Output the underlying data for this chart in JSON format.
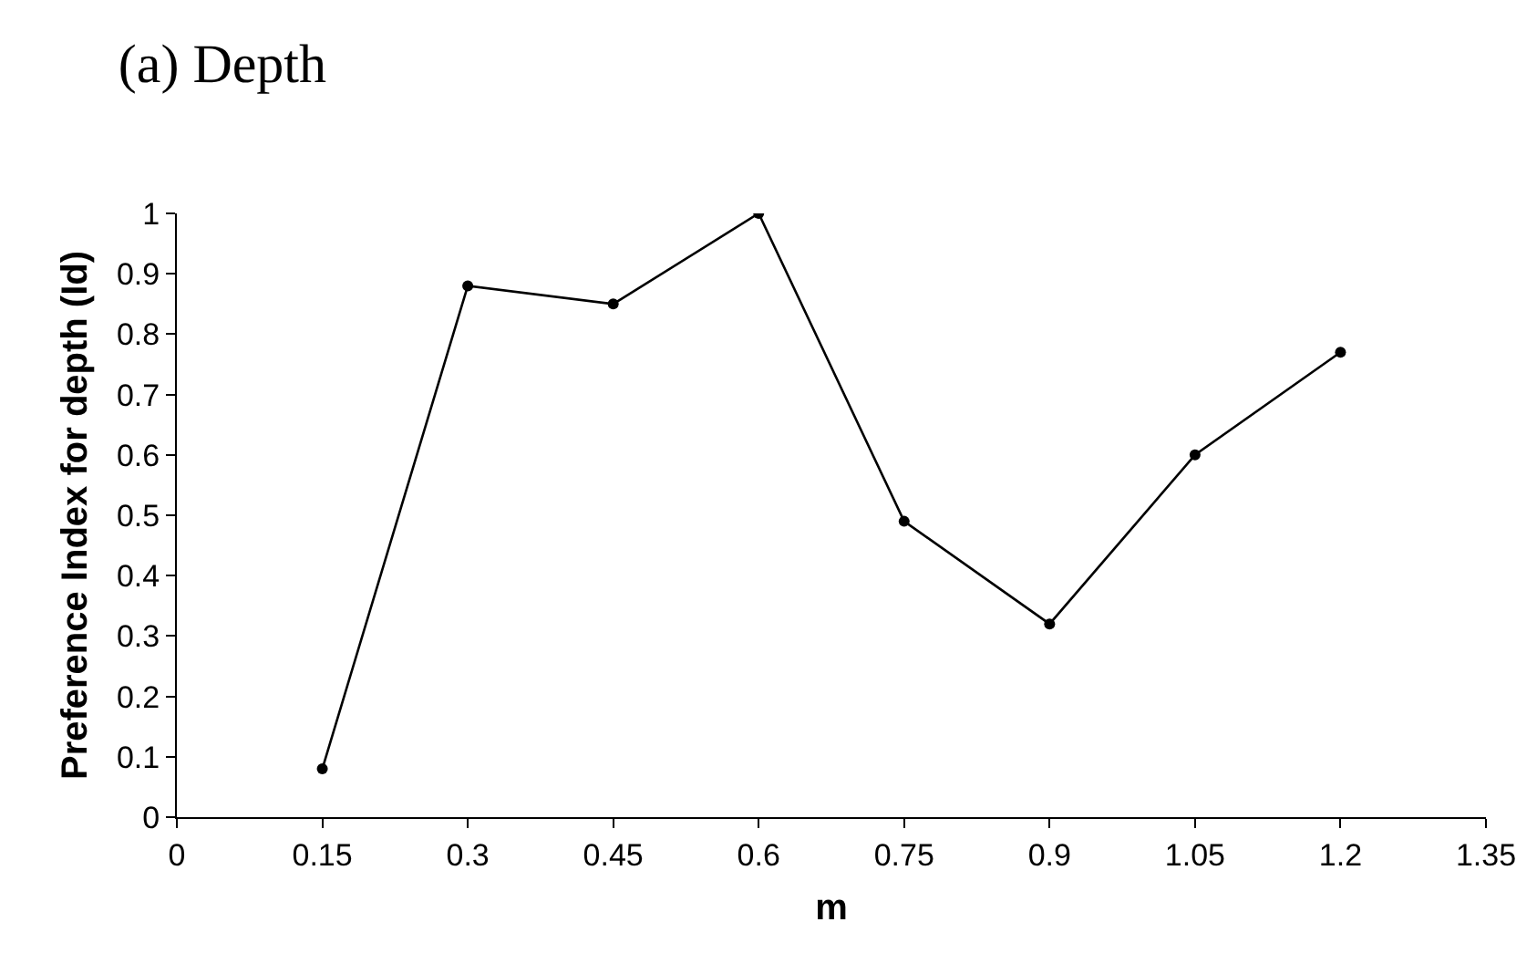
{
  "chart_data": {
    "type": "line",
    "title": "(a) Depth",
    "xlabel": "m",
    "ylabel": "Preference Index for depth (Id)",
    "x": [
      0.15,
      0.3,
      0.45,
      0.6,
      0.75,
      0.9,
      1.05,
      1.2
    ],
    "series": [
      {
        "color": "#000000",
        "values": [
          0.08,
          0.88,
          0.85,
          1.0,
          0.49,
          0.32,
          0.6,
          0.77
        ]
      }
    ],
    "xlim": [
      0,
      1.35
    ],
    "xticks": [
      0,
      0.15,
      0.3,
      0.45,
      0.6,
      0.75,
      0.9,
      1.05,
      1.2,
      1.35
    ],
    "ylim": [
      0,
      1
    ],
    "yticks": [
      0,
      0.1,
      0.2,
      0.3,
      0.4,
      0.5,
      0.6,
      0.7,
      0.8,
      0.9,
      1
    ],
    "grid": false,
    "marker": "circle",
    "line_style": "solid"
  }
}
